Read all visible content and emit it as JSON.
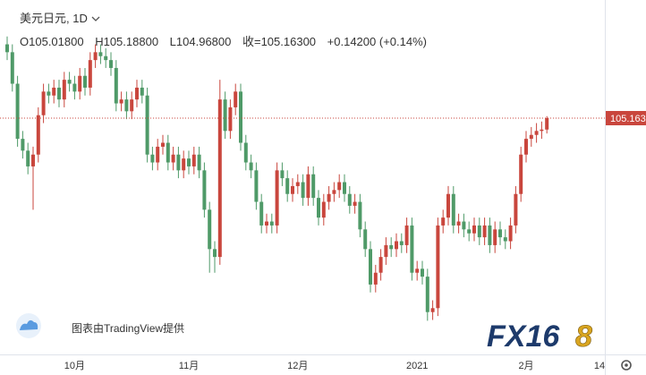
{
  "header": {
    "symbol": "美元日元",
    "interval": "1D",
    "open_prefix": "O",
    "open": "105.01800",
    "high_prefix": "H",
    "high": "105.18800",
    "low_prefix": "L",
    "low": "104.96800",
    "close_prefix": "收=",
    "close": "105.16300",
    "change": "+0.14200",
    "change_pct": "(+0.14%)"
  },
  "watermark": "图表由TradingView提供",
  "logo": [
    "FX16",
    "8"
  ],
  "chart_data": {
    "type": "candlestick",
    "up_color": "#c9463d",
    "down_color": "#4f9a68",
    "ylim": [
      102.174,
      106.663
    ],
    "last_price": 105.163,
    "extra_x_label": "14",
    "categories": [
      null,
      null,
      null,
      null,
      null,
      null,
      null,
      null,
      null,
      null,
      null,
      null,
      null,
      "10月",
      null,
      null,
      null,
      null,
      null,
      null,
      null,
      null,
      null,
      null,
      null,
      null,
      null,
      null,
      null,
      null,
      null,
      null,
      null,
      null,
      null,
      "11月",
      null,
      null,
      null,
      null,
      null,
      null,
      null,
      null,
      null,
      null,
      null,
      null,
      null,
      null,
      null,
      null,
      null,
      null,
      null,
      null,
      "12月",
      null,
      null,
      null,
      null,
      null,
      null,
      null,
      null,
      null,
      null,
      null,
      null,
      null,
      null,
      null,
      null,
      null,
      null,
      null,
      null,
      null,
      null,
      "2021",
      null,
      null,
      null,
      null,
      null,
      null,
      null,
      null,
      null,
      null,
      null,
      null,
      null,
      null,
      null,
      null,
      null,
      null,
      null,
      null,
      "2月",
      null,
      null,
      null,
      null
    ],
    "open": [
      106.1,
      106.0,
      105.6,
      104.9,
      104.75,
      104.55,
      104.7,
      105.2,
      105.5,
      105.45,
      105.55,
      105.4,
      105.65,
      105.6,
      105.5,
      105.7,
      105.55,
      105.9,
      106.0,
      105.95,
      105.9,
      105.8,
      105.35,
      105.4,
      105.25,
      105.4,
      105.55,
      105.45,
      104.7,
      104.6,
      104.8,
      104.85,
      104.6,
      104.7,
      104.5,
      104.65,
      104.55,
      104.7,
      104.5,
      104.0,
      103.5,
      103.4,
      105.4,
      105.0,
      105.3,
      105.5,
      104.85,
      104.6,
      104.5,
      104.1,
      103.8,
      103.85,
      103.8,
      104.5,
      104.4,
      104.2,
      104.3,
      104.35,
      104.15,
      104.45,
      104.15,
      103.9,
      104.1,
      104.2,
      104.25,
      104.35,
      104.2,
      104.05,
      104.1,
      103.75,
      103.5,
      103.05,
      103.2,
      103.4,
      103.55,
      103.5,
      103.6,
      103.55,
      103.8,
      103.2,
      103.25,
      103.15,
      102.7,
      102.75,
      103.8,
      103.9,
      104.2,
      103.8,
      103.85,
      103.75,
      103.7,
      103.8,
      103.65,
      103.8,
      103.55,
      103.75,
      103.65,
      103.6,
      103.8,
      104.2,
      104.7,
      104.9,
      104.95,
      105.0,
      105.018
    ],
    "high": [
      106.2,
      106.1,
      105.7,
      105.0,
      104.85,
      104.8,
      105.3,
      105.6,
      105.6,
      105.65,
      105.65,
      105.75,
      105.75,
      105.7,
      105.8,
      105.8,
      106.0,
      106.1,
      106.1,
      106.05,
      106.0,
      105.9,
      105.5,
      105.5,
      105.5,
      105.65,
      105.65,
      105.55,
      104.8,
      104.9,
      104.95,
      104.95,
      104.8,
      104.8,
      104.75,
      104.75,
      104.8,
      104.8,
      104.6,
      104.1,
      103.6,
      105.65,
      105.5,
      105.4,
      105.6,
      105.6,
      104.95,
      104.7,
      104.6,
      104.2,
      103.95,
      103.95,
      104.6,
      104.6,
      104.5,
      104.4,
      104.45,
      104.45,
      104.55,
      104.55,
      104.25,
      104.2,
      104.3,
      104.35,
      104.45,
      104.45,
      104.3,
      104.2,
      104.2,
      103.85,
      103.6,
      103.3,
      103.5,
      103.65,
      103.65,
      103.7,
      103.7,
      103.9,
      103.9,
      103.35,
      103.35,
      103.25,
      102.85,
      103.9,
      104.0,
      104.3,
      104.3,
      103.95,
      103.95,
      103.85,
      103.9,
      103.9,
      103.9,
      103.9,
      103.85,
      103.85,
      103.75,
      103.9,
      104.3,
      104.8,
      105.0,
      105.05,
      105.1,
      105.12,
      105.188
    ],
    "low": [
      105.9,
      105.5,
      104.8,
      104.65,
      104.45,
      104.0,
      104.6,
      105.1,
      105.35,
      105.35,
      105.3,
      105.3,
      105.5,
      105.4,
      105.4,
      105.45,
      105.45,
      105.8,
      105.85,
      105.8,
      105.7,
      105.25,
      105.25,
      105.15,
      105.15,
      105.3,
      105.35,
      104.6,
      104.5,
      104.5,
      104.7,
      104.5,
      104.5,
      104.4,
      104.4,
      104.45,
      104.45,
      104.4,
      103.9,
      103.2,
      103.2,
      103.3,
      104.9,
      104.9,
      105.2,
      104.75,
      104.5,
      104.4,
      104.0,
      103.7,
      103.7,
      103.7,
      103.7,
      104.3,
      104.1,
      104.1,
      104.2,
      104.05,
      104.05,
      104.05,
      103.8,
      103.8,
      104.0,
      104.1,
      104.15,
      104.1,
      103.95,
      103.95,
      103.65,
      103.4,
      102.95,
      102.95,
      103.1,
      103.3,
      103.4,
      103.4,
      103.45,
      103.45,
      103.1,
      103.1,
      103.05,
      102.59,
      102.6,
      102.65,
      103.7,
      103.8,
      103.7,
      103.7,
      103.65,
      103.6,
      103.6,
      103.55,
      103.55,
      103.45,
      103.45,
      103.55,
      103.5,
      103.5,
      103.7,
      104.1,
      104.6,
      104.8,
      104.85,
      104.9,
      104.968
    ],
    "close": [
      106.0,
      105.6,
      104.9,
      104.75,
      104.55,
      104.7,
      105.2,
      105.5,
      105.45,
      105.55,
      105.4,
      105.65,
      105.6,
      105.5,
      105.7,
      105.55,
      105.9,
      106.0,
      105.95,
      105.9,
      105.8,
      105.35,
      105.4,
      105.25,
      105.4,
      105.55,
      105.45,
      104.7,
      104.6,
      104.8,
      104.85,
      104.6,
      104.7,
      104.5,
      104.65,
      104.55,
      104.7,
      104.5,
      104.0,
      103.5,
      103.4,
      105.4,
      105.0,
      105.3,
      105.5,
      104.85,
      104.6,
      104.5,
      104.1,
      103.8,
      103.85,
      103.8,
      104.5,
      104.4,
      104.2,
      104.3,
      104.35,
      104.15,
      104.45,
      104.15,
      103.9,
      104.1,
      104.2,
      104.25,
      104.35,
      104.2,
      104.05,
      104.1,
      103.75,
      103.5,
      103.05,
      103.2,
      103.4,
      103.55,
      103.5,
      103.6,
      103.55,
      103.8,
      103.2,
      103.25,
      103.15,
      102.7,
      102.75,
      103.8,
      103.9,
      104.2,
      103.8,
      103.85,
      103.75,
      103.7,
      103.8,
      103.65,
      103.8,
      103.55,
      103.75,
      103.65,
      103.6,
      103.8,
      104.2,
      104.7,
      104.9,
      104.95,
      105.0,
      105.018,
      105.163
    ]
  }
}
